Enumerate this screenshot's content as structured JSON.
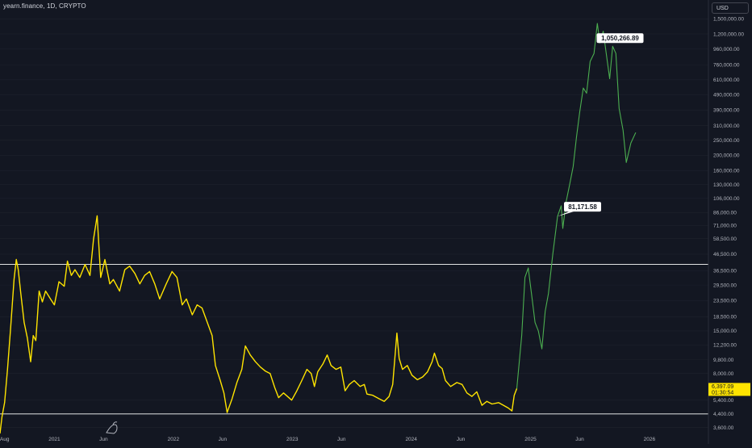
{
  "header": {
    "title": "yearn.finance, 1D, CRYPTO",
    "currency": "USD"
  },
  "price_axis": {
    "labels": [
      "1,500,000.00",
      "1,200,000.00",
      "960,000.00",
      "760,000.00",
      "610,000.00",
      "490,000.00",
      "390,000.00",
      "310,000.00",
      "250,000.00",
      "200,000.00",
      "160,000.00",
      "130,000.00",
      "106,000.00",
      "86,000.00",
      "71,000.00",
      "58,500.00",
      "46,500.00",
      "36,500.00",
      "29,500.00",
      "23,500.00",
      "18,500.00",
      "15,000.00",
      "12,200.00",
      "9,800.00",
      "8,000.00",
      "5,400.00",
      "4,400.00",
      "3,600.00"
    ]
  },
  "time_axis": {
    "labels": [
      "Aug",
      "2021",
      "Jun",
      "2022",
      "Jun",
      "2023",
      "Jun",
      "2024",
      "Jun",
      "2025",
      "Jun",
      "2026"
    ]
  },
  "annotations": {
    "peak_label": "1,050,266.89",
    "break_label": "81,171.58",
    "last_price": "6,397.09",
    "countdown": "01:30:54"
  },
  "colors": {
    "background": "#131722",
    "historical": "#ffe400",
    "projection": "#4caf50",
    "level_line": "#ffffff",
    "price_badge": "#ffe400"
  },
  "chart_data": {
    "type": "line",
    "title": "yearn.finance, 1D, CRYPTO",
    "scale": "log",
    "y_unit": "USD",
    "ylim": [
      3300,
      1800000
    ],
    "xlim": [
      "2020-07-18",
      "2026-07-01"
    ],
    "horizontal_levels": [
      40000,
      4400
    ],
    "series": [
      {
        "style": "historical",
        "points": [
          [
            "2020-07-18",
            3300
          ],
          [
            "2020-07-24",
            4200
          ],
          [
            "2020-08-01",
            5200
          ],
          [
            "2020-08-10",
            8500
          ],
          [
            "2020-08-20",
            16000
          ],
          [
            "2020-08-30",
            32000
          ],
          [
            "2020-09-06",
            43000
          ],
          [
            "2020-09-12",
            37000
          ],
          [
            "2020-09-20",
            26000
          ],
          [
            "2020-09-30",
            17000
          ],
          [
            "2020-10-10",
            13500
          ],
          [
            "2020-10-20",
            9500
          ],
          [
            "2020-10-28",
            14000
          ],
          [
            "2020-11-05",
            13000
          ],
          [
            "2020-11-15",
            27000
          ],
          [
            "2020-11-25",
            23000
          ],
          [
            "2020-12-05",
            27000
          ],
          [
            "2020-12-20",
            24000
          ],
          [
            "2021-01-01",
            22000
          ],
          [
            "2021-01-15",
            31000
          ],
          [
            "2021-01-31",
            29000
          ],
          [
            "2021-02-10",
            42000
          ],
          [
            "2021-02-22",
            34000
          ],
          [
            "2021-03-05",
            37000
          ],
          [
            "2021-03-20",
            33000
          ],
          [
            "2021-04-05",
            40000
          ],
          [
            "2021-04-20",
            34000
          ],
          [
            "2021-05-01",
            58000
          ],
          [
            "2021-05-12",
            82000
          ],
          [
            "2021-05-23",
            33000
          ],
          [
            "2021-06-05",
            43000
          ],
          [
            "2021-06-20",
            30000
          ],
          [
            "2021-07-01",
            32000
          ],
          [
            "2021-07-20",
            27000
          ],
          [
            "2021-08-05",
            37000
          ],
          [
            "2021-08-20",
            39000
          ],
          [
            "2021-09-05",
            35000
          ],
          [
            "2021-09-20",
            30000
          ],
          [
            "2021-10-05",
            34000
          ],
          [
            "2021-10-20",
            36000
          ],
          [
            "2021-11-05",
            30000
          ],
          [
            "2021-11-20",
            24000
          ],
          [
            "2021-12-10",
            30000
          ],
          [
            "2021-12-28",
            36000
          ],
          [
            "2022-01-12",
            33000
          ],
          [
            "2022-01-28",
            22000
          ],
          [
            "2022-02-10",
            24000
          ],
          [
            "2022-02-28",
            19000
          ],
          [
            "2022-03-15",
            22000
          ],
          [
            "2022-03-30",
            21000
          ],
          [
            "2022-04-15",
            17000
          ],
          [
            "2022-04-30",
            14000
          ],
          [
            "2022-05-10",
            9000
          ],
          [
            "2022-05-25",
            7200
          ],
          [
            "2022-06-05",
            6000
          ],
          [
            "2022-06-15",
            4500
          ],
          [
            "2022-06-30",
            5500
          ],
          [
            "2022-07-15",
            7000
          ],
          [
            "2022-07-30",
            8500
          ],
          [
            "2022-08-10",
            12000
          ],
          [
            "2022-08-25",
            10500
          ],
          [
            "2022-09-10",
            9500
          ],
          [
            "2022-09-25",
            8800
          ],
          [
            "2022-10-10",
            8300
          ],
          [
            "2022-10-25",
            8000
          ],
          [
            "2022-11-08",
            6500
          ],
          [
            "2022-11-20",
            5600
          ],
          [
            "2022-12-05",
            6000
          ],
          [
            "2022-12-30",
            5400
          ],
          [
            "2023-01-15",
            6200
          ],
          [
            "2023-01-30",
            7200
          ],
          [
            "2023-02-15",
            8500
          ],
          [
            "2023-02-28",
            8000
          ],
          [
            "2023-03-10",
            6600
          ],
          [
            "2023-03-20",
            8200
          ],
          [
            "2023-04-05",
            9200
          ],
          [
            "2023-04-18",
            10500
          ],
          [
            "2023-04-30",
            9000
          ],
          [
            "2023-05-15",
            8500
          ],
          [
            "2023-05-30",
            8800
          ],
          [
            "2023-06-12",
            6200
          ],
          [
            "2023-06-25",
            6800
          ],
          [
            "2023-07-10",
            7200
          ],
          [
            "2023-07-28",
            6600
          ],
          [
            "2023-08-10",
            6800
          ],
          [
            "2023-08-18",
            5900
          ],
          [
            "2023-09-05",
            5800
          ],
          [
            "2023-09-25",
            5500
          ],
          [
            "2023-10-10",
            5300
          ],
          [
            "2023-10-25",
            5700
          ],
          [
            "2023-11-05",
            6800
          ],
          [
            "2023-11-18",
            14500
          ],
          [
            "2023-11-25",
            10000
          ],
          [
            "2023-12-05",
            8500
          ],
          [
            "2023-12-20",
            9000
          ],
          [
            "2024-01-03",
            7800
          ],
          [
            "2024-01-20",
            7300
          ],
          [
            "2024-02-05",
            7600
          ],
          [
            "2024-02-20",
            8200
          ],
          [
            "2024-03-05",
            9500
          ],
          [
            "2024-03-12",
            10800
          ],
          [
            "2024-03-25",
            9000
          ],
          [
            "2024-04-05",
            8600
          ],
          [
            "2024-04-15",
            7200
          ],
          [
            "2024-05-01",
            6600
          ],
          [
            "2024-05-20",
            7000
          ],
          [
            "2024-06-05",
            6800
          ],
          [
            "2024-06-20",
            6000
          ],
          [
            "2024-07-05",
            5700
          ],
          [
            "2024-07-20",
            6100
          ],
          [
            "2024-08-05",
            5000
          ],
          [
            "2024-08-20",
            5300
          ],
          [
            "2024-09-05",
            5100
          ],
          [
            "2024-09-25",
            5200
          ],
          [
            "2024-10-10",
            5000
          ],
          [
            "2024-10-25",
            4800
          ],
          [
            "2024-11-05",
            4600
          ],
          [
            "2024-11-12",
            5800
          ],
          [
            "2024-11-20",
            6400
          ]
        ]
      },
      {
        "style": "projection",
        "points": [
          [
            "2024-11-20",
            6400
          ],
          [
            "2024-12-05",
            14000
          ],
          [
            "2024-12-15",
            33000
          ],
          [
            "2024-12-25",
            38000
          ],
          [
            "2025-01-05",
            25000
          ],
          [
            "2025-01-15",
            17000
          ],
          [
            "2025-01-25",
            15000
          ],
          [
            "2025-02-05",
            11500
          ],
          [
            "2025-02-15",
            20000
          ],
          [
            "2025-02-25",
            26000
          ],
          [
            "2025-03-10",
            46000
          ],
          [
            "2025-03-25",
            81171
          ],
          [
            "2025-04-05",
            95000
          ],
          [
            "2025-04-10",
            68000
          ],
          [
            "2025-04-20",
            100000
          ],
          [
            "2025-05-01",
            130000
          ],
          [
            "2025-05-12",
            170000
          ],
          [
            "2025-05-22",
            260000
          ],
          [
            "2025-06-01",
            380000
          ],
          [
            "2025-06-12",
            540000
          ],
          [
            "2025-06-22",
            500000
          ],
          [
            "2025-07-03",
            800000
          ],
          [
            "2025-07-15",
            900000
          ],
          [
            "2025-07-25",
            1400000
          ],
          [
            "2025-08-02",
            1050266
          ],
          [
            "2025-08-12",
            1250000
          ],
          [
            "2025-08-22",
            880000
          ],
          [
            "2025-09-01",
            620000
          ],
          [
            "2025-09-10",
            1000000
          ],
          [
            "2025-09-20",
            900000
          ],
          [
            "2025-09-30",
            400000
          ],
          [
            "2025-10-12",
            290000
          ],
          [
            "2025-10-22",
            180000
          ],
          [
            "2025-11-05",
            240000
          ],
          [
            "2025-11-20",
            280000
          ]
        ]
      }
    ]
  }
}
